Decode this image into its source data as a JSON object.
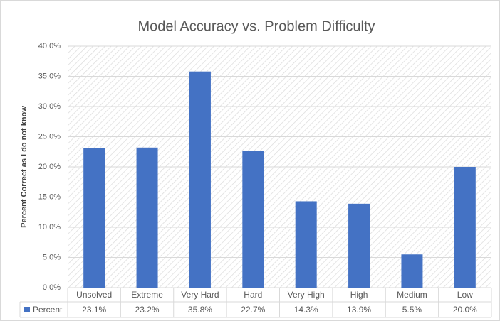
{
  "chart_data": {
    "type": "bar",
    "title": "Model Accuracy vs. Problem Difficulty",
    "y_label": "Percent Correct as I do not know",
    "categories": [
      "Unsolved",
      "Extreme",
      "Very Hard",
      "Hard",
      "Very High",
      "High",
      "Medium",
      "Low"
    ],
    "series": [
      {
        "name": "Percent",
        "color": "#4472c4",
        "values": [
          23.1,
          23.2,
          35.8,
          22.7,
          14.3,
          13.9,
          5.5,
          20.0
        ],
        "value_labels": [
          "23.1%",
          "23.2%",
          "35.8%",
          "22.7%",
          "14.3%",
          "13.9%",
          "5.5%",
          "20.0%"
        ]
      }
    ],
    "ylim": [
      0,
      40
    ],
    "yticks": [
      {
        "value": 0,
        "label": "0.0%"
      },
      {
        "value": 5,
        "label": "5.0%"
      },
      {
        "value": 10,
        "label": "10.0%"
      },
      {
        "value": 15,
        "label": "15.0%"
      },
      {
        "value": 20,
        "label": "20.0%"
      },
      {
        "value": 25,
        "label": "25.0%"
      },
      {
        "value": 30,
        "label": "30.0%"
      },
      {
        "value": 35,
        "label": "35.0%"
      },
      {
        "value": 40,
        "label": "40.0%"
      }
    ],
    "grid": true
  }
}
